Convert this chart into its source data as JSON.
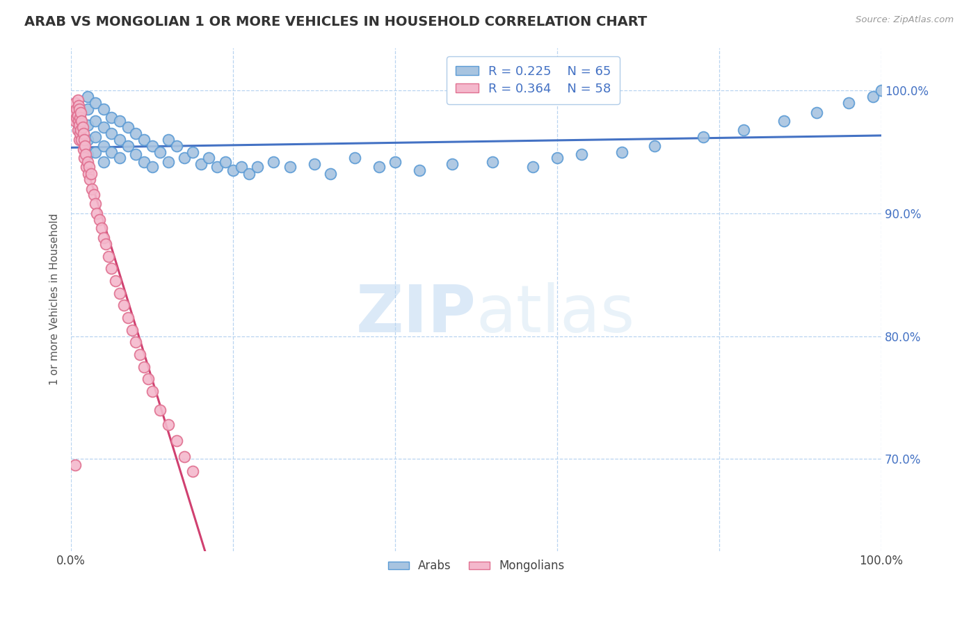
{
  "title": "ARAB VS MONGOLIAN 1 OR MORE VEHICLES IN HOUSEHOLD CORRELATION CHART",
  "source": "Source: ZipAtlas.com",
  "ylabel": "1 or more Vehicles in Household",
  "arab_color": "#a8c4e0",
  "mongolian_color": "#f4b8cc",
  "arab_edge_color": "#5b9bd5",
  "mongolian_edge_color": "#e07090",
  "arab_line_color": "#4472c4",
  "mongolian_line_color": "#d04070",
  "xlim": [
    0.0,
    1.0
  ],
  "ylim": [
    0.625,
    1.035
  ],
  "yticks": [
    0.7,
    0.8,
    0.9,
    1.0
  ],
  "ytick_labels": [
    "70.0%",
    "80.0%",
    "90.0%",
    "100.0%"
  ],
  "watermark_color": "#c8dff0",
  "legend_text_color": "#4472c4",
  "arab_scatter_x": [
    0.01,
    0.01,
    0.02,
    0.02,
    0.02,
    0.02,
    0.02,
    0.03,
    0.03,
    0.03,
    0.03,
    0.04,
    0.04,
    0.04,
    0.04,
    0.05,
    0.05,
    0.05,
    0.06,
    0.06,
    0.06,
    0.07,
    0.07,
    0.08,
    0.08,
    0.09,
    0.09,
    0.1,
    0.1,
    0.11,
    0.12,
    0.12,
    0.13,
    0.14,
    0.15,
    0.16,
    0.17,
    0.18,
    0.19,
    0.2,
    0.21,
    0.22,
    0.23,
    0.25,
    0.27,
    0.3,
    0.32,
    0.35,
    0.38,
    0.4,
    0.43,
    0.47,
    0.52,
    0.57,
    0.6,
    0.63,
    0.68,
    0.72,
    0.78,
    0.83,
    0.88,
    0.92,
    0.96,
    0.99,
    1.0
  ],
  "arab_scatter_y": [
    0.975,
    0.968,
    0.995,
    0.985,
    0.972,
    0.96,
    0.948,
    0.99,
    0.975,
    0.962,
    0.95,
    0.985,
    0.97,
    0.955,
    0.942,
    0.978,
    0.965,
    0.95,
    0.975,
    0.96,
    0.945,
    0.97,
    0.955,
    0.965,
    0.948,
    0.96,
    0.942,
    0.955,
    0.938,
    0.95,
    0.96,
    0.942,
    0.955,
    0.945,
    0.95,
    0.94,
    0.945,
    0.938,
    0.942,
    0.935,
    0.938,
    0.932,
    0.938,
    0.942,
    0.938,
    0.94,
    0.932,
    0.945,
    0.938,
    0.942,
    0.935,
    0.94,
    0.942,
    0.938,
    0.945,
    0.948,
    0.95,
    0.955,
    0.962,
    0.968,
    0.975,
    0.982,
    0.99,
    0.995,
    1.0
  ],
  "mongolian_scatter_x": [
    0.005,
    0.005,
    0.005,
    0.007,
    0.007,
    0.008,
    0.008,
    0.008,
    0.009,
    0.009,
    0.01,
    0.01,
    0.01,
    0.011,
    0.011,
    0.012,
    0.012,
    0.013,
    0.013,
    0.014,
    0.015,
    0.015,
    0.016,
    0.016,
    0.017,
    0.018,
    0.019,
    0.02,
    0.021,
    0.022,
    0.023,
    0.025,
    0.026,
    0.028,
    0.03,
    0.032,
    0.035,
    0.038,
    0.04,
    0.043,
    0.046,
    0.05,
    0.055,
    0.06,
    0.065,
    0.07,
    0.075,
    0.08,
    0.085,
    0.09,
    0.095,
    0.1,
    0.11,
    0.12,
    0.13,
    0.14,
    0.15,
    0.005
  ],
  "mongolian_scatter_y": [
    0.99,
    0.982,
    0.975,
    0.985,
    0.978,
    0.992,
    0.98,
    0.968,
    0.988,
    0.975,
    0.985,
    0.972,
    0.96,
    0.978,
    0.965,
    0.982,
    0.968,
    0.975,
    0.96,
    0.97,
    0.965,
    0.952,
    0.96,
    0.945,
    0.955,
    0.948,
    0.938,
    0.942,
    0.932,
    0.938,
    0.928,
    0.932,
    0.92,
    0.915,
    0.908,
    0.9,
    0.895,
    0.888,
    0.88,
    0.875,
    0.865,
    0.855,
    0.845,
    0.835,
    0.825,
    0.815,
    0.805,
    0.795,
    0.785,
    0.775,
    0.765,
    0.755,
    0.74,
    0.728,
    0.715,
    0.702,
    0.69,
    0.695
  ]
}
